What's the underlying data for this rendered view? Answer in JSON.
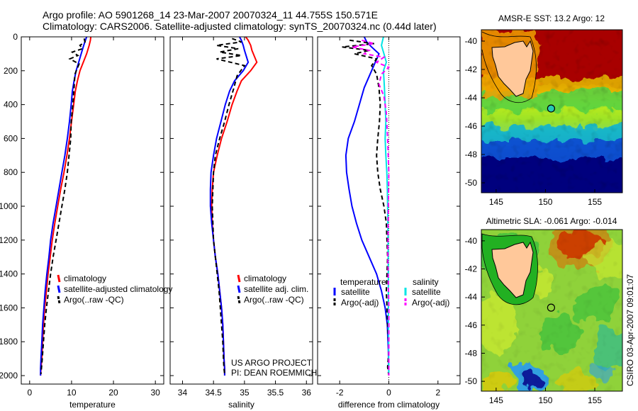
{
  "header": {
    "title_line1": "Argo profile: AO 5901268_14 23-Mar-2007 20070324_11 44.755S 150.571E",
    "title_line2": "Climatology: CARS2006. Satellite-adjusted climatology: synTS_20070324.nc (0.44d later)"
  },
  "project_note": {
    "line1": "US ARGO PROJECT",
    "line2": "PI: DEAN ROEMMICH"
  },
  "credit": "CSIRO 03-Apr-2007 09:01:07",
  "colors": {
    "climatology": "#ff0000",
    "satellite": "#0000ff",
    "argo": "#000000",
    "sal_satellite": "#00e5e5",
    "sal_argo": "#ff00ff"
  },
  "chart_data": [
    {
      "type": "line",
      "id": "temperature",
      "xlabel": "temperature",
      "ylabel": "",
      "xlim": [
        -2,
        32
      ],
      "ylim": [
        2050,
        0
      ],
      "xticks": [
        0,
        10,
        20,
        30
      ],
      "xtick_labels": [
        "0",
        "10",
        "20",
        "30"
      ],
      "yticks": [
        0,
        200,
        400,
        600,
        800,
        1000,
        1200,
        1400,
        1600,
        1800,
        2000
      ],
      "ytick_labels": [
        "0",
        "200",
        "400",
        "600",
        "800",
        "1000",
        "1200",
        "1400",
        "1600",
        "1800",
        "2000"
      ],
      "legend": {
        "position": "lower-right",
        "entries": [
          "climatology",
          "satellite-adjusted climatology",
          "Argo(..raw -QC)"
        ]
      },
      "series": [
        {
          "name": "climatology",
          "color": "#ff0000",
          "dash": false,
          "x": [
            14.6,
            14.5,
            14.2,
            13.6,
            12.8,
            12.0,
            11.4,
            10.9,
            10.5,
            10.0,
            9.5,
            8.9,
            8.2,
            7.4,
            6.7,
            6.0,
            5.4,
            4.9,
            4.4,
            4.0,
            3.6,
            3.3,
            3.1,
            2.9,
            2.7,
            2.6
          ],
          "depth": [
            0,
            20,
            50,
            100,
            150,
            200,
            260,
            320,
            400,
            500,
            600,
            700,
            800,
            900,
            1000,
            1100,
            1200,
            1300,
            1400,
            1500,
            1600,
            1700,
            1800,
            1900,
            1960,
            2000
          ]
        },
        {
          "name": "satellite-adjusted climatology",
          "color": "#0000ff",
          "dash": false,
          "x": [
            13.6,
            13.3,
            12.9,
            12.3,
            11.7,
            11.1,
            10.6,
            10.2,
            9.9,
            9.5,
            9.0,
            8.4,
            7.7,
            7.0,
            6.3,
            5.6,
            5.0,
            4.6,
            4.1,
            3.7,
            3.4,
            3.1,
            2.9,
            2.7,
            2.6,
            2.6
          ],
          "depth": [
            0,
            20,
            50,
            100,
            150,
            200,
            260,
            320,
            400,
            500,
            600,
            700,
            800,
            900,
            1000,
            1100,
            1200,
            1300,
            1400,
            1500,
            1600,
            1700,
            1800,
            1900,
            1960,
            2000
          ]
        },
        {
          "name": "Argo(..raw -QC)",
          "color": "#000000",
          "dash": true,
          "x": [
            13.0,
            13.2,
            12.0,
            12.6,
            10.2,
            11.5,
            9.6,
            11.8,
            10.8,
            10.6,
            10.3,
            9.9,
            9.8,
            9.4,
            9.0,
            8.4,
            7.7,
            7.0,
            6.3,
            5.6,
            5.0,
            4.5,
            4.0,
            3.6,
            3.3,
            3.0,
            2.8,
            2.7
          ],
          "depth": [
            10,
            30,
            50,
            70,
            90,
            110,
            130,
            160,
            220,
            300,
            400,
            500,
            600,
            700,
            800,
            900,
            1000,
            1100,
            1200,
            1300,
            1400,
            1500,
            1600,
            1700,
            1800,
            1900,
            1960,
            1990
          ]
        }
      ]
    },
    {
      "type": "line",
      "id": "salinity",
      "xlabel": "salinity",
      "ylabel": "",
      "xlim": [
        33.8,
        36.1
      ],
      "ylim": [
        2050,
        0
      ],
      "xticks": [
        34,
        34.5,
        35,
        35.5,
        36
      ],
      "xtick_labels": [
        "34",
        "34.5",
        "35",
        "35.5",
        "36"
      ],
      "legend": {
        "position": "lower-right",
        "entries": [
          "climatology",
          "satellite adj. clim.",
          "Argo(..raw -QC)"
        ]
      },
      "series": [
        {
          "name": "climatology",
          "color": "#ff0000",
          "dash": false,
          "x": [
            35.02,
            35.06,
            35.1,
            35.12,
            35.2,
            35.1,
            34.95,
            34.88,
            34.8,
            34.72,
            34.63,
            34.56,
            34.5,
            34.48,
            34.47,
            34.48,
            34.5,
            34.53,
            34.57,
            34.6,
            34.63,
            34.65,
            34.66,
            34.67,
            34.68,
            34.68
          ],
          "depth": [
            0,
            20,
            50,
            80,
            150,
            200,
            260,
            320,
            400,
            500,
            600,
            700,
            800,
            900,
            1000,
            1100,
            1200,
            1300,
            1400,
            1500,
            1600,
            1700,
            1800,
            1900,
            1960,
            2000
          ]
        },
        {
          "name": "satellite adj. clim.",
          "color": "#0000ff",
          "dash": false,
          "x": [
            34.92,
            34.95,
            34.98,
            35.0,
            35.06,
            34.98,
            34.84,
            34.76,
            34.69,
            34.62,
            34.55,
            34.5,
            34.46,
            34.45,
            34.45,
            34.47,
            34.5,
            34.53,
            34.57,
            34.6,
            34.63,
            34.65,
            34.66,
            34.67,
            34.68,
            34.68
          ],
          "depth": [
            0,
            20,
            50,
            80,
            150,
            200,
            260,
            320,
            400,
            500,
            600,
            700,
            800,
            900,
            1000,
            1100,
            1200,
            1300,
            1400,
            1500,
            1600,
            1700,
            1800,
            1900,
            1960,
            2000
          ]
        },
        {
          "name": "Argo(..raw -QC)",
          "color": "#000000",
          "dash": true,
          "x": [
            34.8,
            34.95,
            34.55,
            34.9,
            34.6,
            34.95,
            34.55,
            35.0,
            34.88,
            34.83,
            34.75,
            34.68,
            34.6,
            34.53,
            34.5,
            34.49,
            34.48,
            34.49,
            34.5,
            34.53,
            34.56,
            34.59,
            34.61,
            34.63,
            34.65,
            34.66,
            34.67,
            34.68
          ],
          "depth": [
            10,
            30,
            50,
            70,
            90,
            110,
            130,
            170,
            230,
            300,
            400,
            500,
            600,
            700,
            800,
            900,
            1000,
            1100,
            1200,
            1300,
            1400,
            1500,
            1600,
            1700,
            1800,
            1900,
            1960,
            1990
          ]
        }
      ]
    },
    {
      "type": "line",
      "id": "difference",
      "xlabel": "difference from climatology",
      "ylabel": "",
      "xlim": [
        -2.9,
        2.9
      ],
      "ylim": [
        2050,
        0
      ],
      "xticks": [
        -2,
        0,
        2
      ],
      "xtick_labels": [
        "-2",
        "0",
        "2"
      ],
      "legend": {
        "position": "lower-center",
        "groups": [
          {
            "title": "temperature",
            "entries": [
              "satellite",
              "Argo(-adj)"
            ]
          },
          {
            "title": "salinity",
            "entries": [
              "satellite",
              "Argo(-adj)"
            ]
          }
        ]
      },
      "series": [
        {
          "name": "temperature satellite",
          "color": "#0000ff",
          "dash": false,
          "x": [
            -1.0,
            -0.9,
            -0.7,
            -0.4,
            -0.7,
            -1.0,
            -1.2,
            -1.4,
            -1.65,
            -1.75,
            -1.72,
            -1.62,
            -1.5,
            -1.32,
            -1.1,
            -0.8,
            -0.5,
            -0.3,
            -0.15,
            -0.06,
            -0.02,
            0.0
          ],
          "depth": [
            0,
            30,
            60,
            100,
            200,
            300,
            400,
            500,
            600,
            700,
            800,
            900,
            1000,
            1100,
            1200,
            1300,
            1400,
            1500,
            1600,
            1700,
            1850,
            2000
          ]
        },
        {
          "name": "temperature Argo(-adj)",
          "color": "#000000",
          "dash": true,
          "x": [
            -1.6,
            -0.6,
            -1.9,
            -0.8,
            -1.4,
            -0.5,
            -0.7,
            -0.5,
            -0.4,
            -0.35,
            -0.38,
            -0.45,
            -0.5,
            -0.45,
            -0.35,
            -0.2,
            -0.1,
            -0.05,
            -0.1,
            -0.05,
            0.0,
            -0.05,
            0.0
          ],
          "depth": [
            20,
            40,
            60,
            80,
            100,
            130,
            170,
            220,
            300,
            400,
            500,
            600,
            700,
            800,
            900,
            1000,
            1100,
            1300,
            1500,
            1700,
            1850,
            1950,
            2000
          ]
        },
        {
          "name": "salinity satellite",
          "color": "#00e5e5",
          "dash": false,
          "x": [
            -0.22,
            -0.3,
            -0.2,
            -0.1,
            -0.22,
            -0.18,
            -0.15,
            -0.12,
            -0.15,
            -0.12,
            -0.08,
            -0.06,
            -0.05,
            -0.03,
            -0.02,
            -0.02,
            -0.01,
            0.0
          ],
          "depth": [
            0,
            50,
            100,
            150,
            200,
            300,
            400,
            500,
            600,
            700,
            800,
            900,
            1000,
            1200,
            1400,
            1600,
            1800,
            2000
          ]
        },
        {
          "name": "salinity Argo(-adj)",
          "color": "#ff00ff",
          "dash": true,
          "x": [
            -1.1,
            -0.6,
            -1.5,
            -0.8,
            -1.0,
            -0.2,
            -0.5,
            0.0,
            -0.3,
            -0.4,
            -0.2,
            -0.1,
            -0.05,
            0.0,
            -0.02,
            -0.04,
            0.0,
            0.0
          ],
          "depth": [
            20,
            40,
            60,
            80,
            100,
            120,
            150,
            180,
            220,
            280,
            350,
            450,
            600,
            800,
            1000,
            1300,
            1600,
            2000
          ]
        }
      ]
    },
    {
      "type": "heatmap",
      "id": "sst-map",
      "title": "AMSR-E SST: 13.2 Argo: 12",
      "xlim": [
        143.5,
        157.8
      ],
      "ylim": [
        -50.7,
        -39.2
      ],
      "xticks": [
        145,
        150,
        155
      ],
      "xtick_labels": [
        "145",
        "150",
        "155"
      ],
      "yticks": [
        -40,
        -42,
        -44,
        -46,
        -48,
        -50
      ],
      "ytick_labels": [
        "-40",
        "-42",
        "-44",
        "-46",
        "-48",
        "-50"
      ],
      "argo_marker": {
        "lon": 150.571,
        "lat": -44.755
      }
    },
    {
      "type": "heatmap",
      "id": "sla-map",
      "title": "Altimetric SLA: -0.061 Argo: -0.014",
      "xlim": [
        143.5,
        157.8
      ],
      "ylim": [
        -50.7,
        -39.2
      ],
      "xticks": [
        145,
        150,
        155
      ],
      "xtick_labels": [
        "145",
        "150",
        "155"
      ],
      "yticks": [
        -40,
        -42,
        -44,
        -46,
        -48,
        -50
      ],
      "ytick_labels": [
        "-40",
        "-42",
        "-44",
        "-46",
        "-48",
        "-50"
      ],
      "argo_marker": {
        "lon": 150.571,
        "lat": -44.755
      }
    }
  ]
}
